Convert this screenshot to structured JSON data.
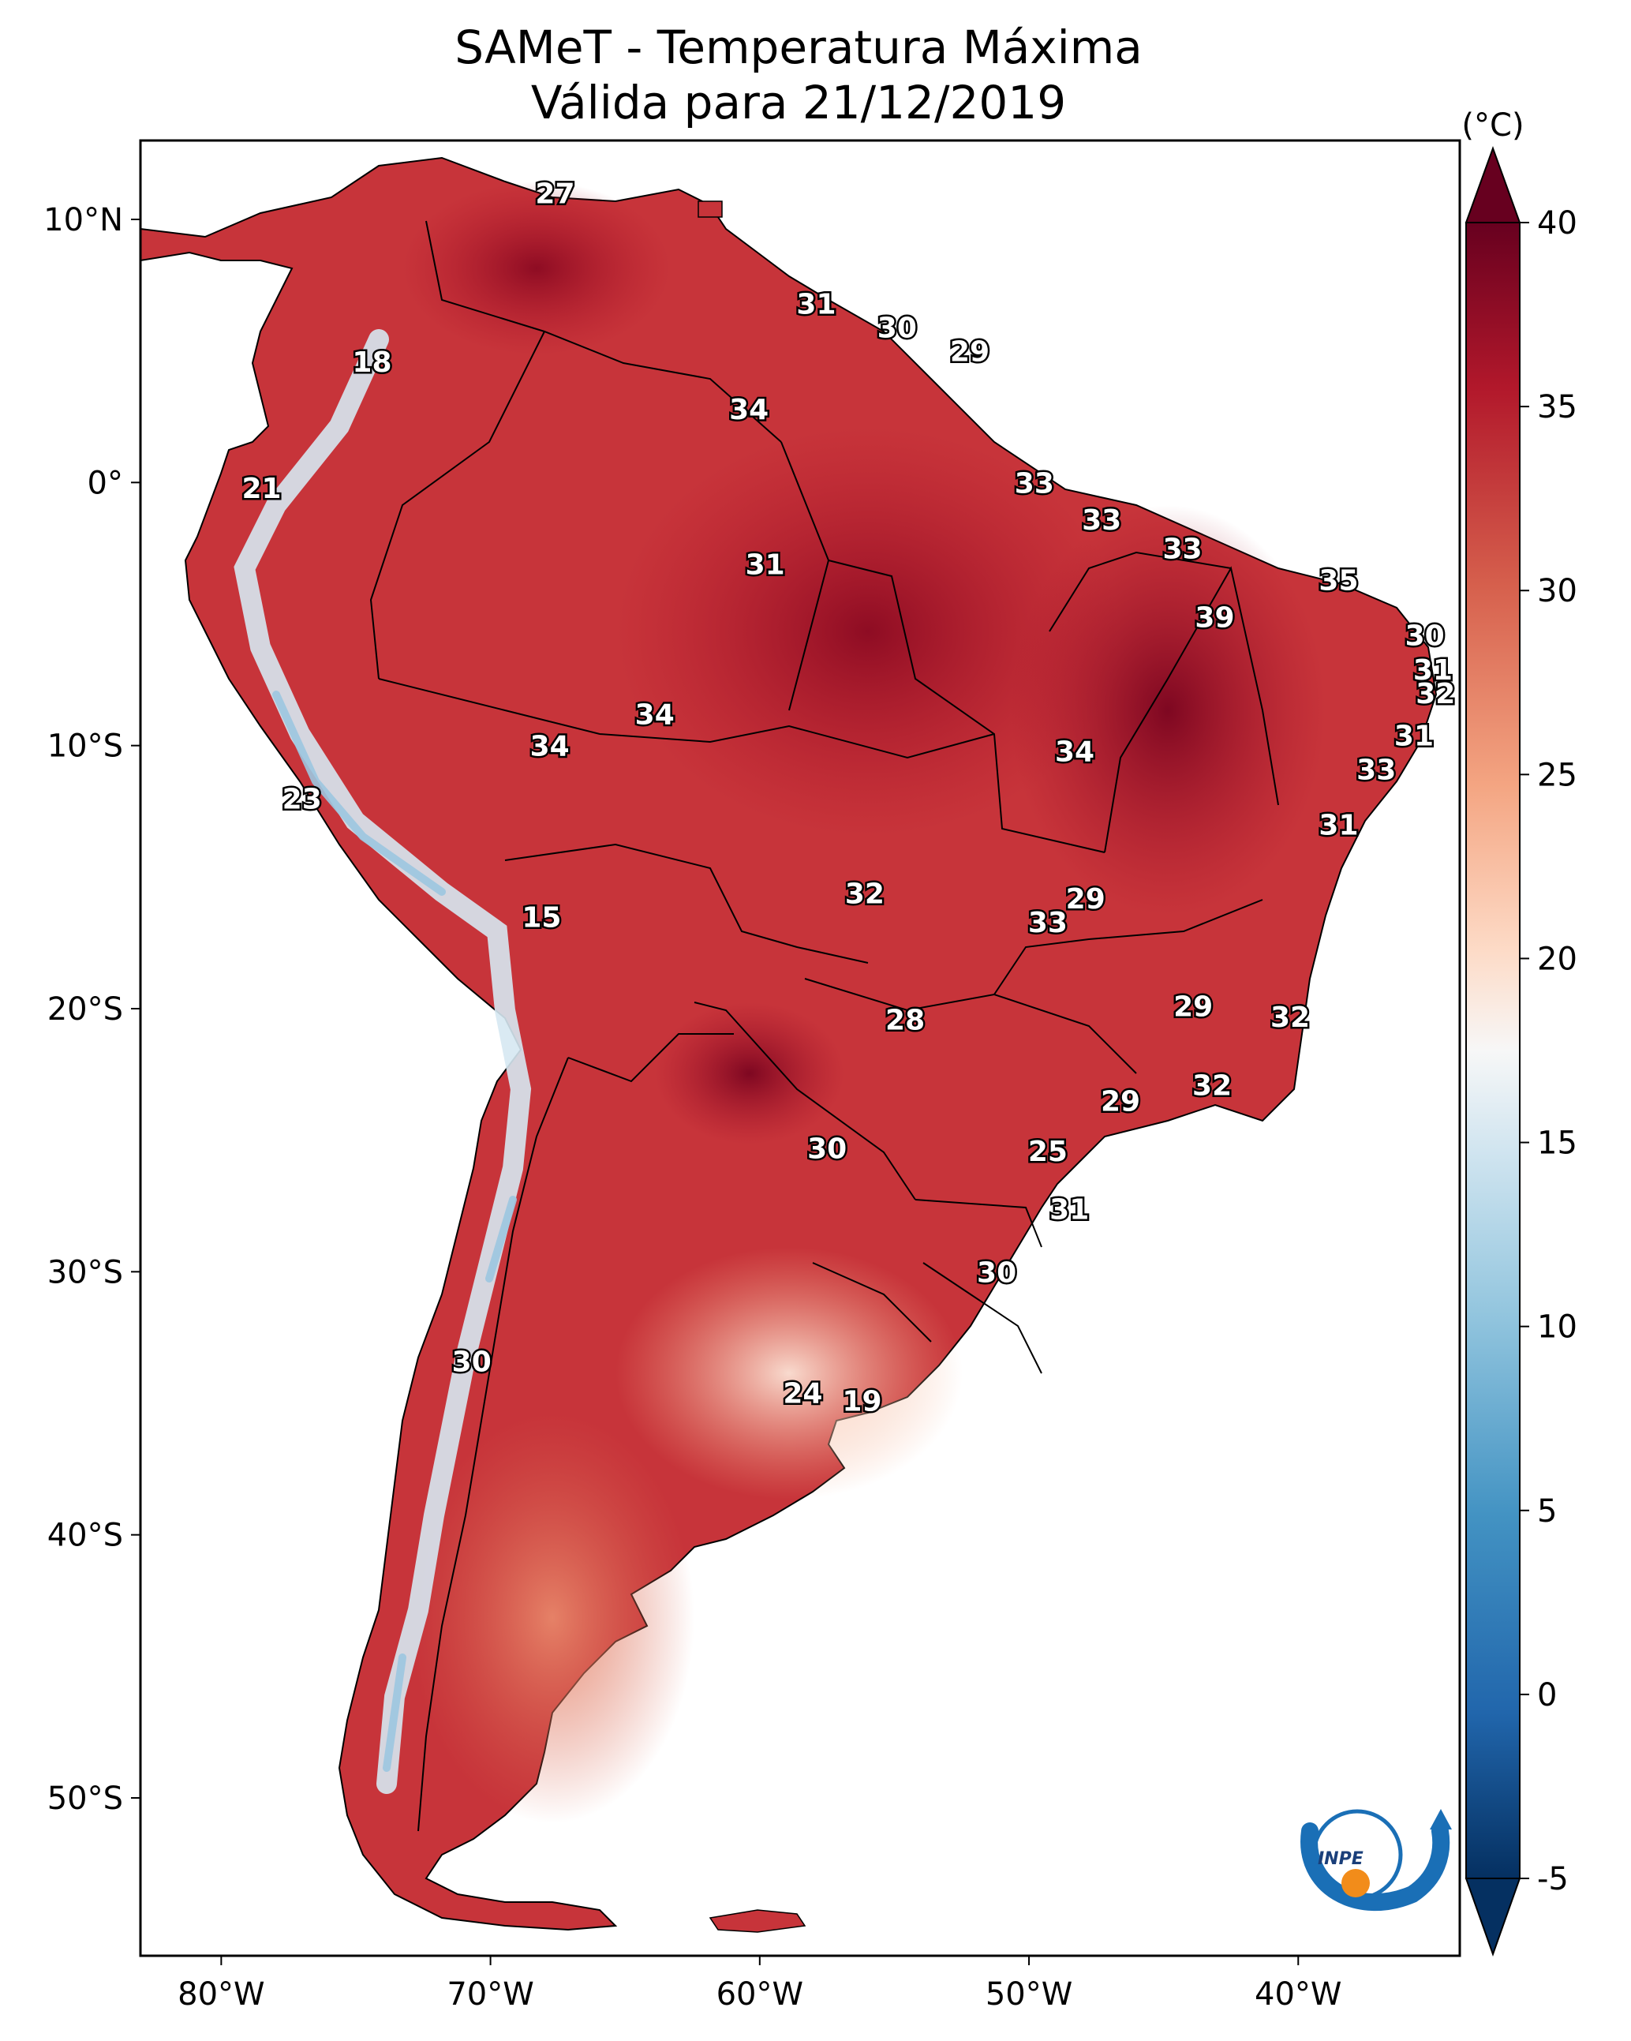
{
  "title": {
    "line1": "SAMeT - Temperatura Máxima",
    "line2": "Válida para 21/12/2019"
  },
  "map": {
    "lon_range": [
      -83,
      -34
    ],
    "lat_range": [
      -56,
      13
    ],
    "lon_ticks": [
      {
        "value": -80,
        "label": "80°W"
      },
      {
        "value": -70,
        "label": "70°W"
      },
      {
        "value": -60,
        "label": "60°W"
      },
      {
        "value": -50,
        "label": "50°W"
      },
      {
        "value": -40,
        "label": "40°W"
      }
    ],
    "lat_ticks": [
      {
        "value": 10,
        "label": "10°N"
      },
      {
        "value": 0,
        "label": "0°"
      },
      {
        "value": -10,
        "label": "10°S"
      },
      {
        "value": -20,
        "label": "20°S"
      },
      {
        "value": -30,
        "label": "30°S"
      },
      {
        "value": -40,
        "label": "40°S"
      },
      {
        "value": -50,
        "label": "50°S"
      }
    ],
    "ocean_color": "#ffffff",
    "border_color": "#000000"
  },
  "colorbar": {
    "unit": "(°C)",
    "min": -5,
    "max": 40,
    "ticks": [
      "40",
      "35",
      "30",
      "25",
      "20",
      "15",
      "10",
      "5",
      "0",
      "-5"
    ],
    "extend": "both",
    "colors": [
      "#053061",
      "#2166ac",
      "#4393c3",
      "#92c5de",
      "#d1e5f0",
      "#f7f7f7",
      "#fddbc7",
      "#f4a582",
      "#d6604d",
      "#b2182b",
      "#67001f"
    ]
  },
  "temperature_labels": [
    {
      "value": "27",
      "lon": -67.6,
      "lat": 11.0
    },
    {
      "value": "18",
      "lon": -74.4,
      "lat": 4.6
    },
    {
      "value": "31",
      "lon": -57.9,
      "lat": 6.8
    },
    {
      "value": "30",
      "lon": -54.9,
      "lat": 5.9
    },
    {
      "value": "29",
      "lon": -52.2,
      "lat": 5.0
    },
    {
      "value": "34",
      "lon": -60.4,
      "lat": 2.8
    },
    {
      "value": "21",
      "lon": -78.5,
      "lat": -0.2
    },
    {
      "value": "33",
      "lon": -49.8,
      "lat": 0.0
    },
    {
      "value": "33",
      "lon": -47.3,
      "lat": -1.4
    },
    {
      "value": "31",
      "lon": -59.8,
      "lat": -3.1
    },
    {
      "value": "33",
      "lon": -44.3,
      "lat": -2.5
    },
    {
      "value": "35",
      "lon": -38.5,
      "lat": -3.7
    },
    {
      "value": "39",
      "lon": -43.1,
      "lat": -5.1
    },
    {
      "value": "30",
      "lon": -35.3,
      "lat": -5.8
    },
    {
      "value": "31",
      "lon": -35.0,
      "lat": -7.1
    },
    {
      "value": "32",
      "lon": -34.9,
      "lat": -8.0
    },
    {
      "value": "34",
      "lon": -63.9,
      "lat": -8.8
    },
    {
      "value": "34",
      "lon": -67.8,
      "lat": -10.0
    },
    {
      "value": "34",
      "lon": -48.3,
      "lat": -10.2
    },
    {
      "value": "31",
      "lon": -35.7,
      "lat": -9.6
    },
    {
      "value": "33",
      "lon": -37.1,
      "lat": -10.9
    },
    {
      "value": "23",
      "lon": -77.0,
      "lat": -12.0
    },
    {
      "value": "31",
      "lon": -38.5,
      "lat": -13.0
    },
    {
      "value": "15",
      "lon": -68.1,
      "lat": -16.5
    },
    {
      "value": "32",
      "lon": -56.1,
      "lat": -15.6
    },
    {
      "value": "29",
      "lon": -47.9,
      "lat": -15.8
    },
    {
      "value": "33",
      "lon": -49.3,
      "lat": -16.7
    },
    {
      "value": "29",
      "lon": -43.9,
      "lat": -19.9
    },
    {
      "value": "32",
      "lon": -40.3,
      "lat": -20.3
    },
    {
      "value": "28",
      "lon": -54.6,
      "lat": -20.4
    },
    {
      "value": "32",
      "lon": -43.2,
      "lat": -22.9
    },
    {
      "value": "29",
      "lon": -46.6,
      "lat": -23.5
    },
    {
      "value": "30",
      "lon": -57.5,
      "lat": -25.3
    },
    {
      "value": "25",
      "lon": -49.3,
      "lat": -25.4
    },
    {
      "value": "31",
      "lon": -48.5,
      "lat": -27.6
    },
    {
      "value": "30",
      "lon": -51.2,
      "lat": -30.0
    },
    {
      "value": "30",
      "lon": -70.7,
      "lat": -33.4
    },
    {
      "value": "24",
      "lon": -58.4,
      "lat": -34.6
    },
    {
      "value": "19",
      "lon": -56.2,
      "lat": -34.9
    }
  ],
  "logo": {
    "text": "INPE"
  }
}
